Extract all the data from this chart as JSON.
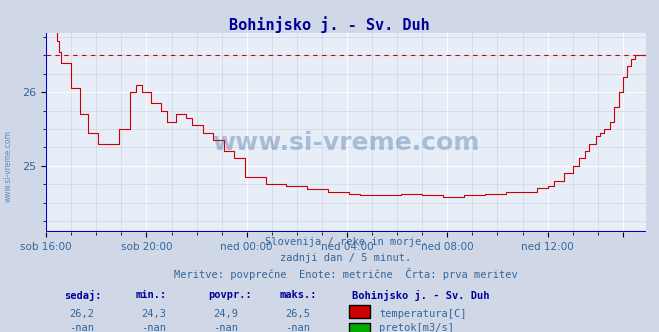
{
  "title": "Bohinjsko j. - Sv. Duh",
  "title_color": "#000099",
  "bg_color": "#d0d8e8",
  "plot_bg_color": "#e8eef8",
  "grid_color_major": "#ffffff",
  "grid_color_minor": "#c8d0e0",
  "line_color": "#cc0000",
  "dashed_line_color": "#cc0000",
  "axis_color": "#0000cc",
  "tick_color": "#336699",
  "text_color": "#336699",
  "ylabel_values": [
    25,
    26
  ],
  "ylim": [
    24.1,
    26.8
  ],
  "xlim": [
    0,
    287
  ],
  "xtick_positions": [
    0,
    48,
    96,
    144,
    192,
    240,
    276
  ],
  "xtick_labels": [
    "sob 16:00",
    "sob 20:00",
    "ned 00:00",
    "ned 04:00",
    "ned 08:00",
    "ned 12:00",
    ""
  ],
  "subtitle_lines": [
    "Slovenija / reke in morje.",
    "zadnji dan / 5 minut.",
    "Meritve: povprečne  Enote: metrične  Črta: prva meritev"
  ],
  "footer_headers": [
    "sedaj:",
    "min.:",
    "povpr.:",
    "maks.:"
  ],
  "footer_values_row1": [
    "26,2",
    "24,3",
    "24,9",
    "26,5"
  ],
  "footer_values_row2": [
    "-nan",
    "-nan",
    "-nan",
    "-nan"
  ],
  "legend_label1": "temperatura[C]",
  "legend_label2": "pretok[m3/s]",
  "legend_color1": "#cc0000",
  "legend_color2": "#00aa00",
  "station_name": "Bohinjsko j. - Sv. Duh",
  "watermark": "www.si-vreme.com",
  "dashed_line_y": 26.5
}
